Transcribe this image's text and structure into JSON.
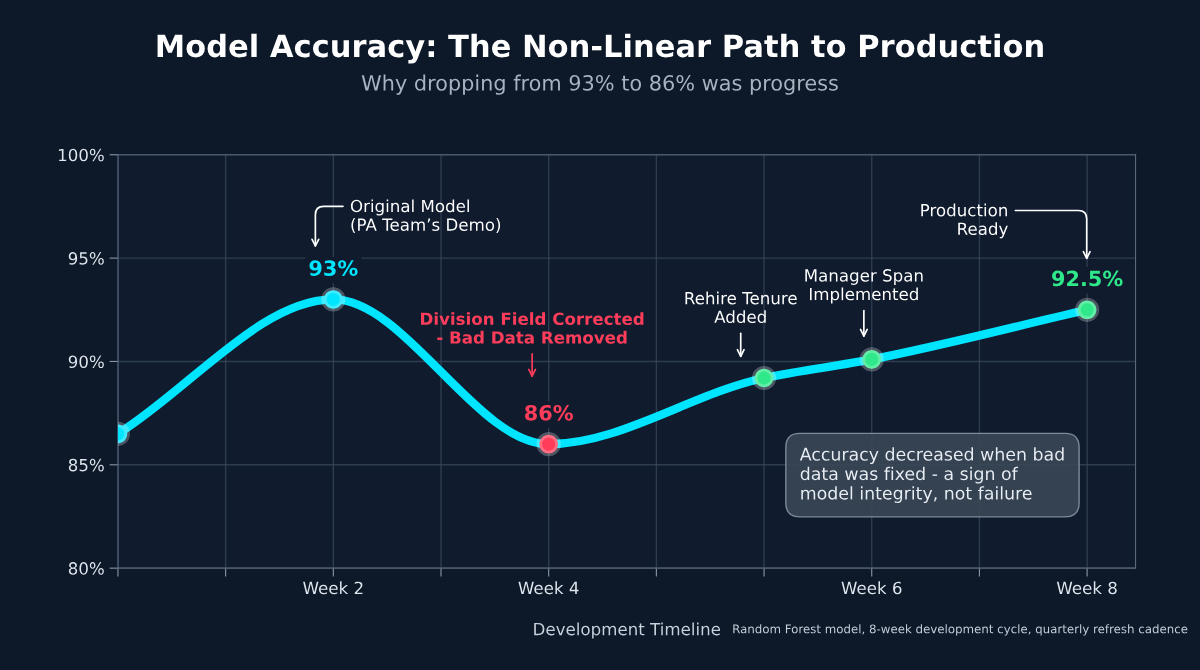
{
  "chart_data": {
    "type": "line",
    "title": "Model Accuracy: The Non-Linear Path to Production",
    "subtitle": "Why dropping from 93% to 86% was progress",
    "xlabel": "Development Timeline",
    "categories": [
      null,
      null,
      "Week 2",
      null,
      "Week 4",
      null,
      null,
      "Week 6",
      null,
      "Week 8"
    ],
    "series": [
      {
        "color": "#00e5ff",
        "values": [
          86.5,
          null,
          93,
          null,
          86,
          null,
          89.2,
          90.1,
          null,
          92.5
        ],
        "colors": [
          "#00e5ff",
          null,
          "#00e5ff",
          null,
          "#ff3d5a",
          null,
          "#2ee88a",
          "#2ee88a",
          null,
          "#2ee88a"
        ],
        "value_labels": [
          null,
          null,
          "93%",
          null,
          "86%",
          null,
          null,
          null,
          null,
          "92.5%"
        ]
      }
    ],
    "ylim": [
      80,
      100
    ],
    "yticks": [
      {
        "value": 80,
        "label": "80%"
      },
      {
        "value": 85,
        "label": "85%"
      },
      {
        "value": 90,
        "label": "90%"
      },
      {
        "value": 95,
        "label": "95%"
      },
      {
        "value": 100,
        "label": "100%"
      }
    ],
    "grid": true,
    "marker": "circle",
    "line_style": "solid",
    "annotations": [
      "Original Model\n(PA Team’s Demo)",
      "Division Field Corrected\n- Bad Data Removed",
      "Rehire Tenure\nAdded",
      "Manager Span\nImplemented",
      "Production\nReady",
      "Accuracy decreased when bad\ndata was fixed - a sign of\nmodel integrity, not failure",
      "Random Forest model, 8-week development cycle, quarterly refresh cadence"
    ]
  }
}
